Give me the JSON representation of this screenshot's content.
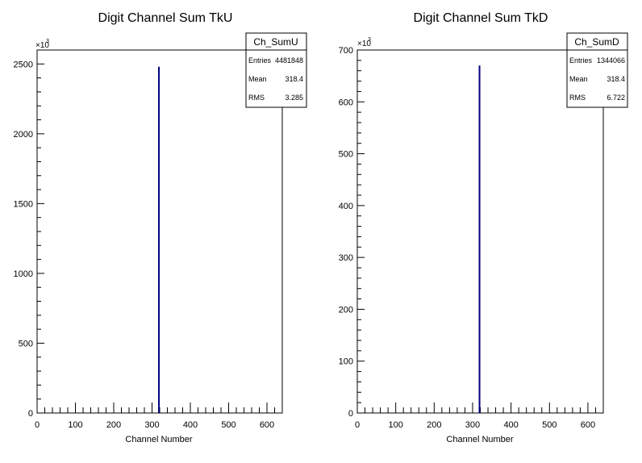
{
  "chart_data": [
    {
      "type": "bar",
      "title": "Digit Channel Sum TkU",
      "xlabel": "Channel Number",
      "ylabel": "",
      "y_exponent_base": "×10",
      "y_exponent_power": "3",
      "xlim": [
        0,
        640
      ],
      "ylim": [
        0,
        2600
      ],
      "xticks": [
        "0",
        "100",
        "200",
        "300",
        "400",
        "500",
        "600"
      ],
      "yticks": [
        "0",
        "500",
        "1000",
        "1500",
        "2000",
        "2500"
      ],
      "bins": [
        {
          "x": 318,
          "y": 2480
        }
      ],
      "line_color": "#000080",
      "stats": {
        "name": "Ch_SumU",
        "entries_label": "Entries",
        "entries": "4481848",
        "mean_label": "Mean",
        "mean": "318.4",
        "rms_label": "RMS",
        "rms": "3.285"
      }
    },
    {
      "type": "bar",
      "title": "Digit Channel Sum TkD",
      "xlabel": "Channel Number",
      "ylabel": "",
      "y_exponent_base": "×10",
      "y_exponent_power": "3",
      "xlim": [
        0,
        640
      ],
      "ylim": [
        0,
        700
      ],
      "xticks": [
        "0",
        "100",
        "200",
        "300",
        "400",
        "500",
        "600"
      ],
      "yticks": [
        "0",
        "100",
        "200",
        "300",
        "400",
        "500",
        "600",
        "700"
      ],
      "bins": [
        {
          "x": 318,
          "y": 670
        }
      ],
      "line_color": "#000080",
      "stats": {
        "name": "Ch_SumD",
        "entries_label": "Entries",
        "entries": "1344066",
        "mean_label": "Mean",
        "mean": "318.4",
        "rms_label": "RMS",
        "rms": "6.722"
      }
    }
  ]
}
